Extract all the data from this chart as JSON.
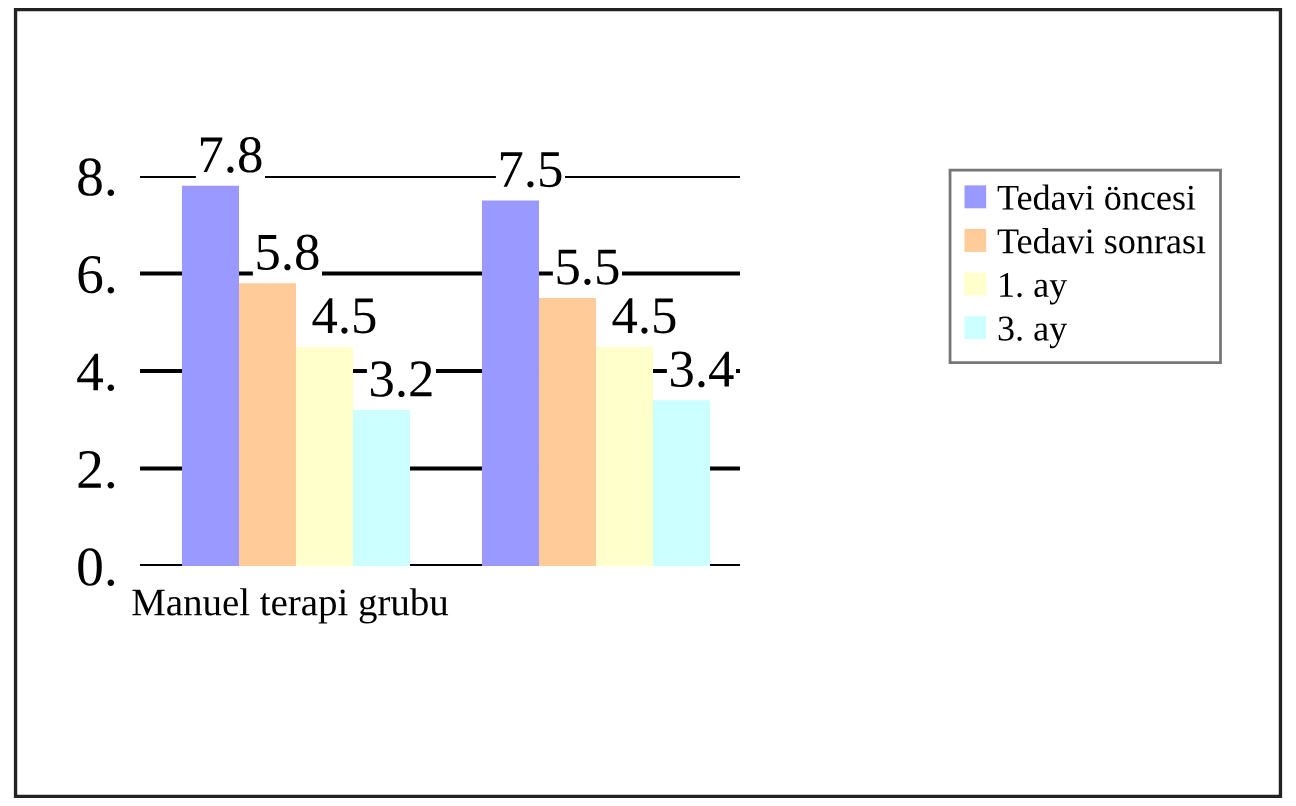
{
  "chart_data": {
    "type": "bar",
    "categories": [
      "Manuel terapi grubu",
      null
    ],
    "series": [
      {
        "name": "Tedavi öncesi",
        "color": "#9999ff",
        "values": [
          7.8,
          7.5
        ]
      },
      {
        "name": "Tedavi sonrası",
        "color": "#ffcc99",
        "values": [
          5.8,
          5.5
        ]
      },
      {
        "name": "1. ay",
        "color": "#ffffcc",
        "values": [
          4.5,
          4.5
        ]
      },
      {
        "name": "3. ay",
        "color": "#ccffff",
        "values": [
          3.2,
          3.4
        ]
      }
    ],
    "ylim": [
      0,
      8
    ],
    "yticks": [
      {
        "value": 0,
        "label": "0."
      },
      {
        "value": 2,
        "label": "2."
      },
      {
        "value": 4,
        "label": "4."
      },
      {
        "value": 6,
        "label": "6."
      },
      {
        "value": 8,
        "label": "8."
      }
    ],
    "grid": "y",
    "legend": "right",
    "data_labels": true
  }
}
